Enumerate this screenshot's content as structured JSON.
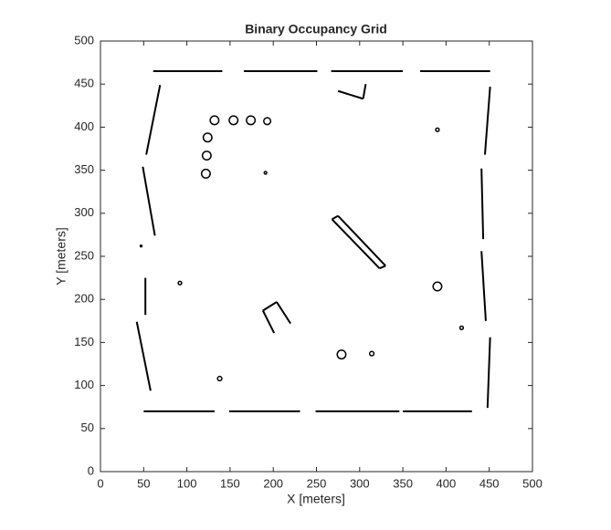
{
  "chart_data": {
    "type": "occupancy",
    "title": "Binary Occupancy Grid",
    "xlabel": "X [meters]",
    "ylabel": "Y [meters]",
    "xlim": [
      0,
      500
    ],
    "ylim": [
      0,
      500
    ],
    "xticks": [
      0,
      50,
      100,
      150,
      200,
      250,
      300,
      350,
      400,
      450,
      500
    ],
    "yticks": [
      0,
      50,
      100,
      150,
      200,
      250,
      300,
      350,
      400,
      450,
      500
    ],
    "color": "#000000",
    "segments": [
      [
        61,
        465,
        141,
        465
      ],
      [
        166,
        465,
        251,
        465
      ],
      [
        267,
        465,
        350,
        465
      ],
      [
        370,
        465,
        451,
        465
      ],
      [
        50,
        70,
        132,
        70
      ],
      [
        149,
        70,
        231,
        70
      ],
      [
        249,
        70,
        346,
        70
      ],
      [
        350,
        70,
        430,
        70
      ],
      [
        69,
        449,
        53,
        368
      ],
      [
        49,
        354,
        63,
        274
      ],
      [
        52,
        225,
        52,
        182
      ],
      [
        42,
        174,
        58,
        94
      ],
      [
        451,
        447,
        445,
        368
      ],
      [
        441,
        352,
        443,
        270
      ],
      [
        441,
        256,
        446,
        175
      ],
      [
        451,
        156,
        448,
        74
      ],
      [
        268,
        293,
        323,
        236
      ],
      [
        275,
        297,
        330,
        239
      ],
      [
        268,
        293,
        275,
        297
      ],
      [
        323,
        236,
        330,
        239
      ],
      [
        275,
        442,
        304,
        433
      ],
      [
        304,
        433,
        307,
        450
      ],
      [
        188,
        187,
        204,
        197
      ],
      [
        204,
        197,
        220,
        172
      ],
      [
        188,
        187,
        201,
        161
      ]
    ],
    "circles": [
      [
        132,
        408,
        5
      ],
      [
        154,
        408,
        5
      ],
      [
        174,
        408,
        5
      ],
      [
        193,
        407,
        4
      ],
      [
        124,
        388,
        5
      ],
      [
        123,
        367,
        5
      ],
      [
        122,
        346,
        5
      ],
      [
        191,
        347,
        1.5
      ],
      [
        390,
        397,
        2
      ],
      [
        390,
        215,
        5
      ],
      [
        418,
        167,
        2
      ],
      [
        279,
        136,
        5
      ],
      [
        314,
        137,
        2.5
      ],
      [
        138,
        108,
        2.5
      ],
      [
        92,
        219,
        2
      ],
      [
        47,
        262,
        1
      ]
    ]
  }
}
